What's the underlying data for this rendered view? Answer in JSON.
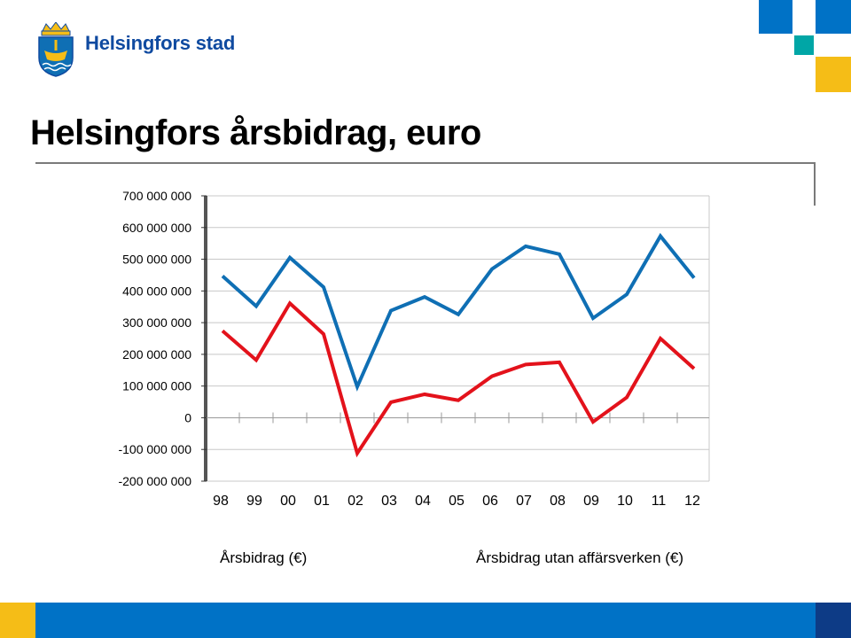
{
  "header": {
    "org_name": "Helsingfors stad"
  },
  "slide": {
    "title": "Helsingfors årsbidrag, euro"
  },
  "colors": {
    "brand_blue": "#0f4aa0",
    "accent_blue": "#0072c6",
    "accent_teal": "#00a6a6",
    "accent_yellow": "#f5bd17",
    "series_blue": "#0f6fb4",
    "series_red": "#e3121b",
    "footer_blue": "#0072c6",
    "footer_navy": "#0d3b86"
  },
  "legend": {
    "item1": "Årsbidrag (€)",
    "item2": "Årsbidrag utan affärsverken (€)"
  },
  "chart_data": {
    "type": "line",
    "categories": [
      "98",
      "99",
      "00",
      "01",
      "02",
      "03",
      "04",
      "05",
      "06",
      "07",
      "08",
      "09",
      "10",
      "11",
      "12"
    ],
    "y_tick_labels": [
      "700 000 000",
      "600 000 000",
      "500 000 000",
      "400 000 000",
      "300 000 000",
      "200 000 000",
      "100 000 000",
      "0",
      "-100 000 000",
      "-200 000 000"
    ],
    "ylim": [
      -200000000,
      700000000
    ],
    "grid": true,
    "series": [
      {
        "name": "Årsbidrag (€)",
        "color": "#0f6fb4",
        "values": [
          447000000,
          352000000,
          505000000,
          412000000,
          98000000,
          338000000,
          381000000,
          326000000,
          469000000,
          541000000,
          516000000,
          314000000,
          389000000,
          573000000,
          441000000
        ]
      },
      {
        "name": "Årsbidrag utan affärsverken (€)",
        "color": "#e3121b",
        "values": [
          274000000,
          182000000,
          361000000,
          264000000,
          -112000000,
          49000000,
          74000000,
          55000000,
          131000000,
          168000000,
          175000000,
          -13000000,
          64000000,
          250000000,
          155000000
        ]
      }
    ]
  }
}
